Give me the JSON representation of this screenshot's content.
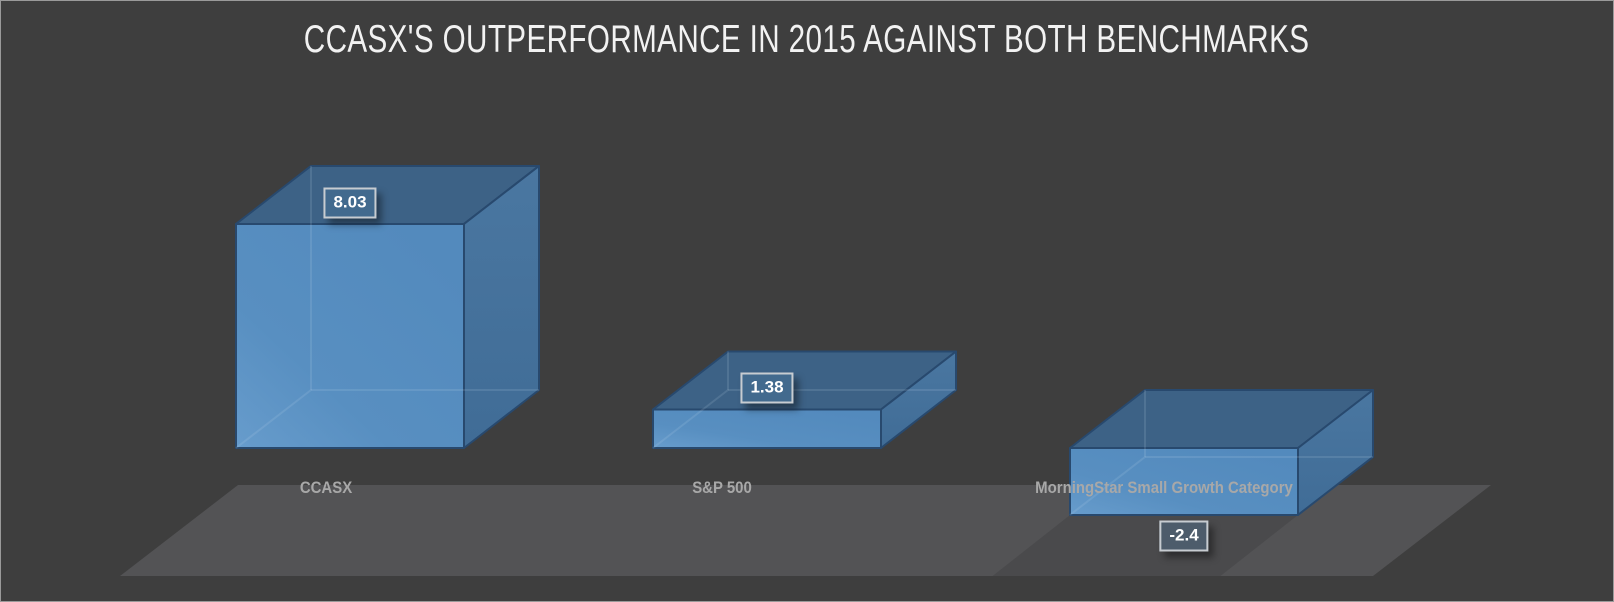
{
  "canvas": {
    "background": "#3e3e3e",
    "border": "#9a9a9a"
  },
  "chart_data": {
    "type": "bar",
    "variant": "3d-column",
    "title": "CCASX'S OUTPERFORMANCE IN 2015 AGAINST BOTH BENCHMARKS",
    "categories": [
      "CCASX",
      "S&P 500",
      "MorningStar Small Growth Category"
    ],
    "values": [
      8.03,
      1.38,
      -2.4
    ],
    "data_labels": [
      "8.03",
      "1.38",
      "-2.4"
    ],
    "legend": "none",
    "gridlines": false,
    "value_axis_visible": false,
    "colors": {
      "title_text": "#f2f2f2",
      "background": "#3e3e3e",
      "floor": "#535355",
      "bar_front": "#588fc1",
      "bar_front_highlight": "#679ccc",
      "bar_top": "#3d6286",
      "bar_side": "#44719b",
      "bar_edge": "#28496e",
      "category_label_text": "#a8a8a8",
      "value_label_text": "#ffffff",
      "value_label_bg_positive": "#426a8e",
      "value_label_bg_negative": "#4d5c6b",
      "value_label_border": "#c7ccd1"
    }
  }
}
